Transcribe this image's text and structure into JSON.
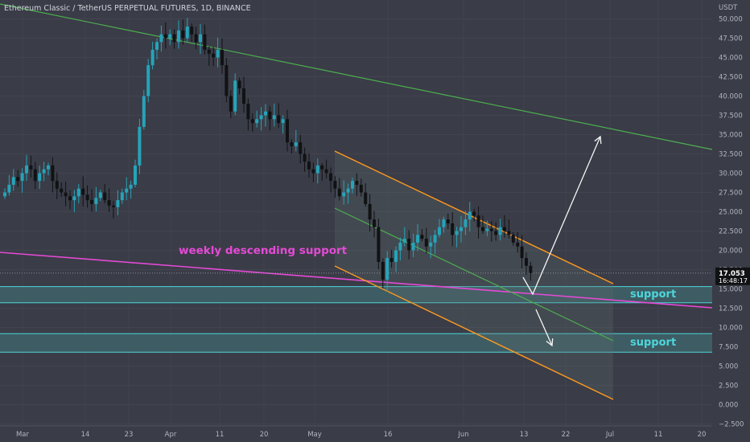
{
  "header": {
    "title": "Ethereum Classic / TetherUS PERPETUAL FUTURES, 1D, BINANCE"
  },
  "chart_data": {
    "type": "candlestick",
    "title": "Ethereum Classic / TetherUS PERPETUAL FUTURES, 1D, BINANCE",
    "y_unit": "USDT",
    "ylim": [
      -2.5,
      52.5
    ],
    "y_ticks": [
      "50.000",
      "47.500",
      "45.000",
      "42.500",
      "40.000",
      "37.500",
      "35.000",
      "32.500",
      "30.000",
      "27.500",
      "25.000",
      "22.500",
      "20.000",
      "17.500",
      "15.000",
      "12.500",
      "10.000",
      "7.500",
      "5.000",
      "2.500",
      "0.000",
      "−2.500"
    ],
    "x_ticks": [
      "Mar",
      "14",
      "23",
      "Apr",
      "11",
      "20",
      "May",
      "16",
      "Jun",
      "13",
      "22",
      "Jul",
      "11",
      "20"
    ],
    "last_price": "17.053",
    "countdown": "16:48:17",
    "annotations": [
      "weekly descending support",
      "support",
      "support"
    ],
    "closes": [
      27.5,
      28.5,
      29.5,
      29,
      30,
      31,
      30.5,
      29,
      30,
      30.5,
      31,
      29,
      28,
      27.5,
      27,
      26.5,
      27,
      28,
      27.2,
      26.5,
      26,
      26.8,
      27.5,
      26.5,
      25.8,
      25.6,
      26.5,
      27.5,
      28,
      28.5,
      31,
      36,
      40,
      44,
      46,
      47,
      48,
      47.5,
      48,
      47,
      48.5,
      47.5,
      49,
      48,
      47,
      48,
      46,
      45.5,
      45,
      46,
      44,
      40,
      38,
      42,
      41,
      39,
      37,
      36.5,
      37,
      37.5,
      38,
      37,
      37.5,
      36.5,
      37,
      34,
      33.5,
      34,
      32.5,
      31.5,
      30.5,
      30,
      31,
      30.5,
      30,
      29,
      28,
      27,
      27.5,
      28,
      29,
      28.5,
      27.5,
      26,
      24,
      23,
      18.5,
      16.2,
      19,
      18.5,
      20,
      21,
      21.5,
      20,
      21,
      22,
      21.5,
      20.5,
      21,
      22,
      23,
      24,
      23.5,
      22,
      22.5,
      23,
      24,
      25,
      24.5,
      23,
      22.5,
      22.8,
      22.5,
      22,
      23,
      22.5,
      22,
      21,
      20.5,
      19,
      18,
      17.05
    ]
  }
}
